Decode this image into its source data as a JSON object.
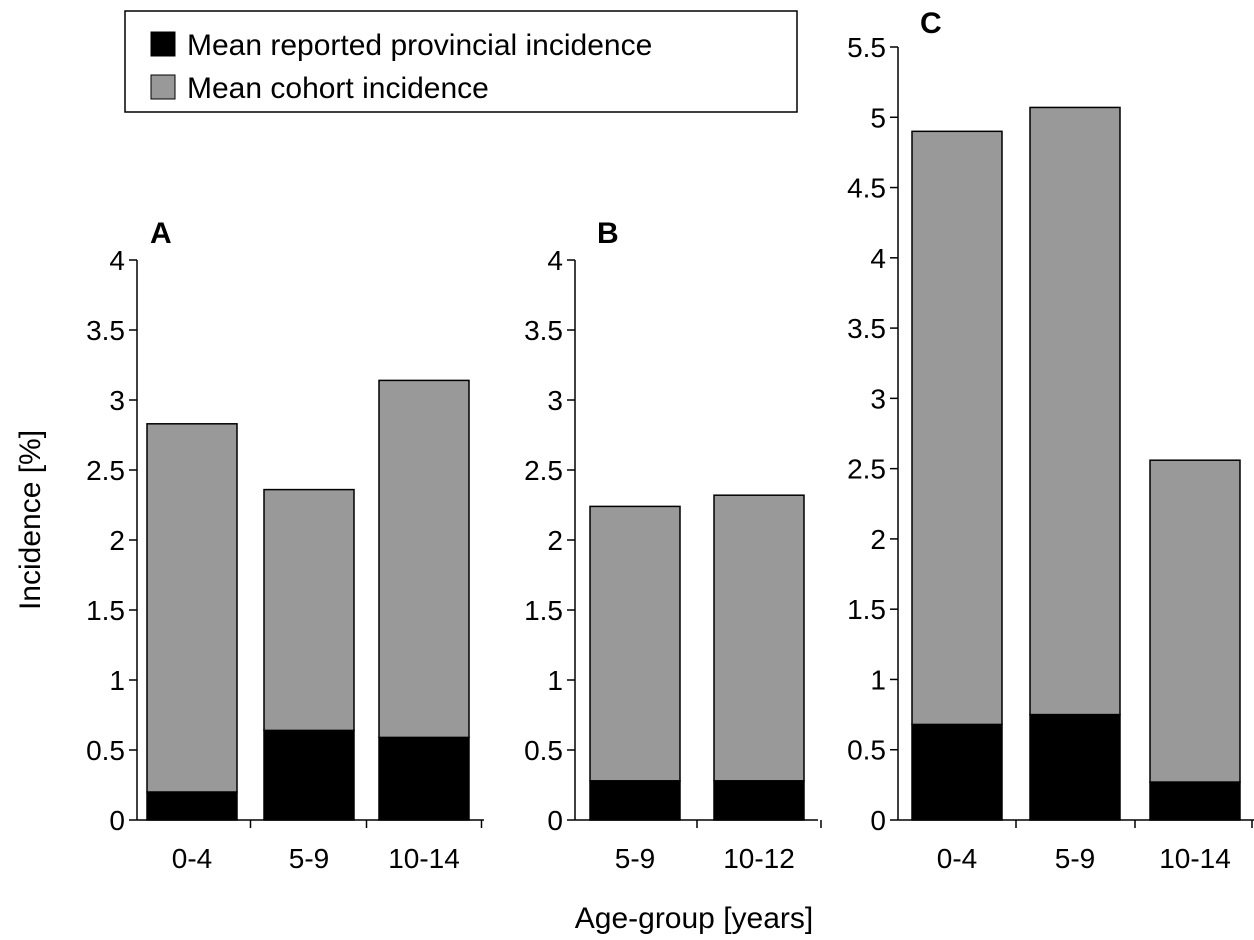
{
  "chart_data": {
    "type": "bar",
    "stacked": true,
    "ylabel": "Incidence [%]",
    "xlabel": "Age-group [years]",
    "legend": {
      "placement": "top-left",
      "entries": [
        {
          "name": "Mean reported provincial incidence",
          "color": "#000000"
        },
        {
          "name": "Mean cohort incidence",
          "color": "#999999"
        }
      ]
    },
    "panels": [
      {
        "label": "A",
        "ylim": [
          0,
          4
        ],
        "yticks": [
          "0",
          "0.5",
          "1",
          "1.5",
          "2",
          "2.5",
          "3",
          "3.5",
          "4"
        ],
        "categories": [
          "0-4",
          "5-9",
          "10-14"
        ],
        "series": [
          {
            "name": "Mean reported provincial incidence",
            "values": [
              0.2,
              0.64,
              0.59
            ]
          },
          {
            "name": "Mean cohort incidence",
            "values": [
              2.63,
              1.72,
              2.55
            ]
          }
        ],
        "totals": [
          2.83,
          2.36,
          3.14
        ]
      },
      {
        "label": "B",
        "ylim": [
          0,
          4
        ],
        "yticks": [
          "0",
          "0.5",
          "1",
          "1.5",
          "2",
          "2.5",
          "3",
          "3.5",
          "4"
        ],
        "categories": [
          "5-9",
          "10-12"
        ],
        "series": [
          {
            "name": "Mean reported provincial incidence",
            "values": [
              0.28,
              0.28
            ]
          },
          {
            "name": "Mean cohort incidence",
            "values": [
              1.96,
              2.04
            ]
          }
        ],
        "totals": [
          2.24,
          2.32
        ]
      },
      {
        "label": "C",
        "ylim": [
          0,
          5.5
        ],
        "yticks": [
          "0",
          "0.5",
          "1",
          "1.5",
          "2",
          "2.5",
          "3",
          "3.5",
          "4",
          "4.5",
          "5",
          "5.5"
        ],
        "categories": [
          "0-4",
          "5-9",
          "10-14"
        ],
        "series": [
          {
            "name": "Mean reported provincial incidence",
            "values": [
              0.68,
              0.75,
              0.27
            ]
          },
          {
            "name": "Mean cohort incidence",
            "values": [
              4.22,
              4.32,
              2.29
            ]
          }
        ],
        "totals": [
          4.9,
          5.07,
          2.56
        ]
      }
    ]
  }
}
